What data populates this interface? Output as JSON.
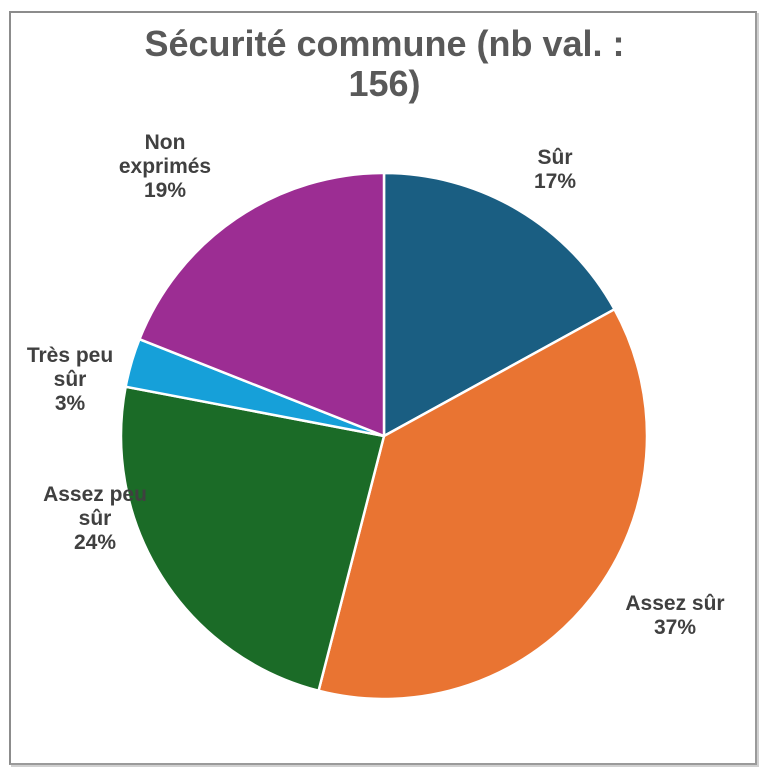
{
  "chart_data": {
    "type": "pie",
    "title": "Sécurité commune (nb val. : 156)",
    "title_lines": [
      "Sécurité commune (nb val. :",
      "156)"
    ],
    "total": 156,
    "categories": [
      "Sûr",
      "Assez sûr",
      "Assez peu sûr",
      "Très peu sûr",
      "Non exprimés"
    ],
    "values": [
      17,
      37,
      24,
      3,
      19
    ],
    "unit": "%",
    "colors": [
      "#1a5e82",
      "#e97432",
      "#1b6b27",
      "#16a0d9",
      "#9c2d93"
    ],
    "legend": "none (data labels)",
    "slices": [
      {
        "name": "Sûr",
        "label_lines": [
          "Sûr"
        ],
        "percent_label": "17%",
        "value": 17,
        "color": "#1a5e82"
      },
      {
        "name": "Assez sûr",
        "label_lines": [
          "Assez sûr"
        ],
        "percent_label": "37%",
        "value": 37,
        "color": "#e97432"
      },
      {
        "name": "Assez peu sûr",
        "label_lines": [
          "Assez peu",
          "sûr"
        ],
        "percent_label": "24%",
        "value": 24,
        "color": "#1b6b27"
      },
      {
        "name": "Très peu sûr",
        "label_lines": [
          "Très peu",
          "sûr"
        ],
        "percent_label": "3%",
        "value": 3,
        "color": "#16a0d9"
      },
      {
        "name": "Non exprimés",
        "label_lines": [
          "Non",
          "exprimés"
        ],
        "percent_label": "19%",
        "value": 19,
        "color": "#9c2d93"
      }
    ]
  }
}
